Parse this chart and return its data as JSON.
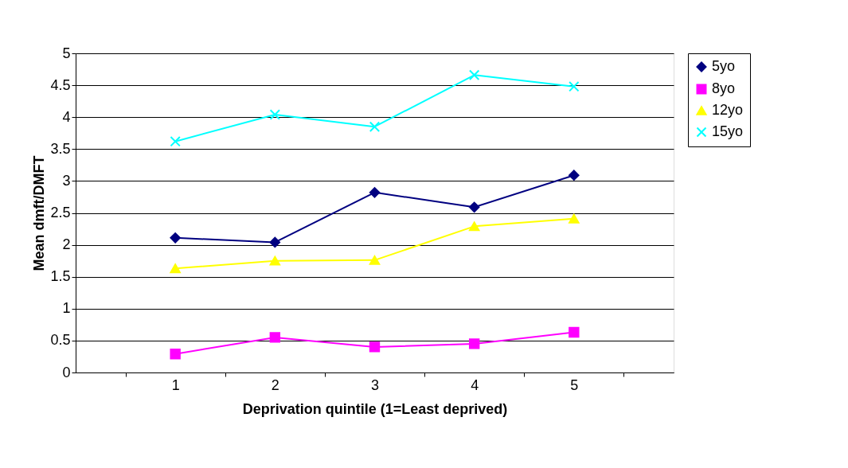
{
  "chart_data": {
    "type": "line",
    "xlabel": "Deprivation quintile (1=Least deprived)",
    "ylabel": "Mean dmft/DMFT",
    "categories": [
      "1",
      "2",
      "3",
      "4",
      "5"
    ],
    "series": [
      {
        "name": "5yo",
        "color": "#000080",
        "marker": "diamond",
        "values": [
          2.11,
          2.04,
          2.82,
          2.59,
          3.09
        ]
      },
      {
        "name": "8yo",
        "color": "#ff00ff",
        "marker": "square",
        "values": [
          0.29,
          0.55,
          0.4,
          0.45,
          0.63
        ]
      },
      {
        "name": "12yo",
        "color": "#ffff00",
        "marker": "triangle",
        "values": [
          1.63,
          1.75,
          1.76,
          2.29,
          2.41
        ]
      },
      {
        "name": "15yo",
        "color": "#00ffff",
        "marker": "cross",
        "values": [
          3.62,
          4.04,
          3.85,
          4.66,
          4.48
        ]
      }
    ],
    "ylim": [
      0,
      5
    ],
    "yticks": [
      0,
      0.5,
      1,
      1.5,
      2,
      2.5,
      3,
      3.5,
      4,
      4.5,
      5
    ],
    "grid": "y",
    "legend": "right"
  }
}
